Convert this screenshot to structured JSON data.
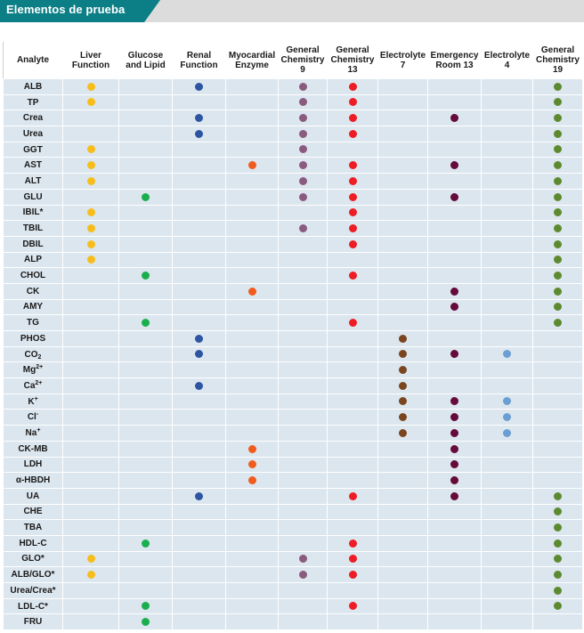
{
  "header": {
    "title": "Elementos de prueba"
  },
  "columns": [
    {
      "label": "Analyte"
    },
    {
      "label": "Liver Function",
      "color": "#f7bd1b"
    },
    {
      "label": "Glucose and Lipid",
      "color": "#1aaf4c"
    },
    {
      "label": "Renal Function",
      "color": "#2e55a3"
    },
    {
      "label": "Myocardial Enzyme",
      "color": "#f05b1e"
    },
    {
      "label": "General Chemistry 9",
      "color": "#8a5a7f"
    },
    {
      "label": "General Chemistry 13",
      "color": "#ee1c24"
    },
    {
      "label": "Electrolyte 7",
      "color": "#7b4520"
    },
    {
      "label": "Emergency Room 13",
      "color": "#650a3a"
    },
    {
      "label": "Electrolyte 4",
      "color": "#6a9fd3"
    },
    {
      "label": "General Chemistry 19",
      "color": "#5d8a30"
    }
  ],
  "rows": [
    {
      "base": "ALB",
      "marks": [
        1,
        0,
        1,
        0,
        1,
        1,
        0,
        0,
        0,
        1
      ]
    },
    {
      "base": "TP",
      "marks": [
        1,
        0,
        0,
        0,
        1,
        1,
        0,
        0,
        0,
        1
      ]
    },
    {
      "base": "Crea",
      "marks": [
        0,
        0,
        1,
        0,
        1,
        1,
        0,
        1,
        0,
        1
      ]
    },
    {
      "base": "Urea",
      "marks": [
        0,
        0,
        1,
        0,
        1,
        1,
        0,
        0,
        0,
        1
      ]
    },
    {
      "base": "GGT",
      "marks": [
        1,
        0,
        0,
        0,
        1,
        0,
        0,
        0,
        0,
        1
      ]
    },
    {
      "base": "AST",
      "marks": [
        1,
        0,
        0,
        1,
        1,
        1,
        0,
        1,
        0,
        1
      ]
    },
    {
      "base": "ALT",
      "marks": [
        1,
        0,
        0,
        0,
        1,
        1,
        0,
        0,
        0,
        1
      ]
    },
    {
      "base": "GLU",
      "marks": [
        0,
        1,
        0,
        0,
        1,
        1,
        0,
        1,
        0,
        1
      ]
    },
    {
      "base": "IBIL*",
      "marks": [
        1,
        0,
        0,
        0,
        0,
        1,
        0,
        0,
        0,
        1
      ]
    },
    {
      "base": "TBIL",
      "marks": [
        1,
        0,
        0,
        0,
        1,
        1,
        0,
        0,
        0,
        1
      ]
    },
    {
      "base": "DBIL",
      "marks": [
        1,
        0,
        0,
        0,
        0,
        1,
        0,
        0,
        0,
        1
      ]
    },
    {
      "base": "ALP",
      "marks": [
        1,
        0,
        0,
        0,
        0,
        0,
        0,
        0,
        0,
        1
      ]
    },
    {
      "base": "CHOL",
      "marks": [
        0,
        1,
        0,
        0,
        0,
        1,
        0,
        0,
        0,
        1
      ]
    },
    {
      "base": "CK",
      "marks": [
        0,
        0,
        0,
        1,
        0,
        0,
        0,
        1,
        0,
        1
      ]
    },
    {
      "base": "AMY",
      "marks": [
        0,
        0,
        0,
        0,
        0,
        0,
        0,
        1,
        0,
        1
      ]
    },
    {
      "base": "TG",
      "marks": [
        0,
        1,
        0,
        0,
        0,
        1,
        0,
        0,
        0,
        1
      ]
    },
    {
      "base": "PHOS",
      "marks": [
        0,
        0,
        1,
        0,
        0,
        0,
        1,
        0,
        0,
        0
      ]
    },
    {
      "base": "CO",
      "sub": "2",
      "marks": [
        0,
        0,
        1,
        0,
        0,
        0,
        1,
        1,
        1,
        0
      ]
    },
    {
      "base": "Mg",
      "sup": "2+",
      "marks": [
        0,
        0,
        0,
        0,
        0,
        0,
        1,
        0,
        0,
        0
      ]
    },
    {
      "base": "Ca",
      "sup": "2+",
      "marks": [
        0,
        0,
        1,
        0,
        0,
        0,
        1,
        0,
        0,
        0
      ]
    },
    {
      "base": "K",
      "sup": "+",
      "marks": [
        0,
        0,
        0,
        0,
        0,
        0,
        1,
        1,
        1,
        0
      ]
    },
    {
      "base": "Cl",
      "sup": "-",
      "marks": [
        0,
        0,
        0,
        0,
        0,
        0,
        1,
        1,
        1,
        0
      ]
    },
    {
      "base": "Na",
      "sup": "+",
      "marks": [
        0,
        0,
        0,
        0,
        0,
        0,
        1,
        1,
        1,
        0
      ]
    },
    {
      "base": "CK-MB",
      "marks": [
        0,
        0,
        0,
        1,
        0,
        0,
        0,
        1,
        0,
        0
      ]
    },
    {
      "base": "LDH",
      "marks": [
        0,
        0,
        0,
        1,
        0,
        0,
        0,
        1,
        0,
        0
      ]
    },
    {
      "base": "α-HBDH",
      "marks": [
        0,
        0,
        0,
        1,
        0,
        0,
        0,
        1,
        0,
        0
      ]
    },
    {
      "base": "UA",
      "marks": [
        0,
        0,
        1,
        0,
        0,
        1,
        0,
        1,
        0,
        1
      ]
    },
    {
      "base": "CHE",
      "marks": [
        0,
        0,
        0,
        0,
        0,
        0,
        0,
        0,
        0,
        1
      ]
    },
    {
      "base": "TBA",
      "marks": [
        0,
        0,
        0,
        0,
        0,
        0,
        0,
        0,
        0,
        1
      ]
    },
    {
      "base": "HDL-C",
      "marks": [
        0,
        1,
        0,
        0,
        0,
        1,
        0,
        0,
        0,
        1
      ]
    },
    {
      "base": "GLO*",
      "marks": [
        1,
        0,
        0,
        0,
        1,
        1,
        0,
        0,
        0,
        1
      ]
    },
    {
      "base": "ALB/GLO*",
      "marks": [
        1,
        0,
        0,
        0,
        1,
        1,
        0,
        0,
        0,
        1
      ]
    },
    {
      "base": "Urea/Crea*",
      "marks": [
        0,
        0,
        0,
        0,
        0,
        0,
        0,
        0,
        0,
        1
      ]
    },
    {
      "base": "LDL-C*",
      "marks": [
        0,
        1,
        0,
        0,
        0,
        1,
        0,
        0,
        0,
        1
      ]
    },
    {
      "base": "FRU",
      "marks": [
        0,
        1,
        0,
        0,
        0,
        0,
        0,
        0,
        0,
        0
      ]
    }
  ]
}
